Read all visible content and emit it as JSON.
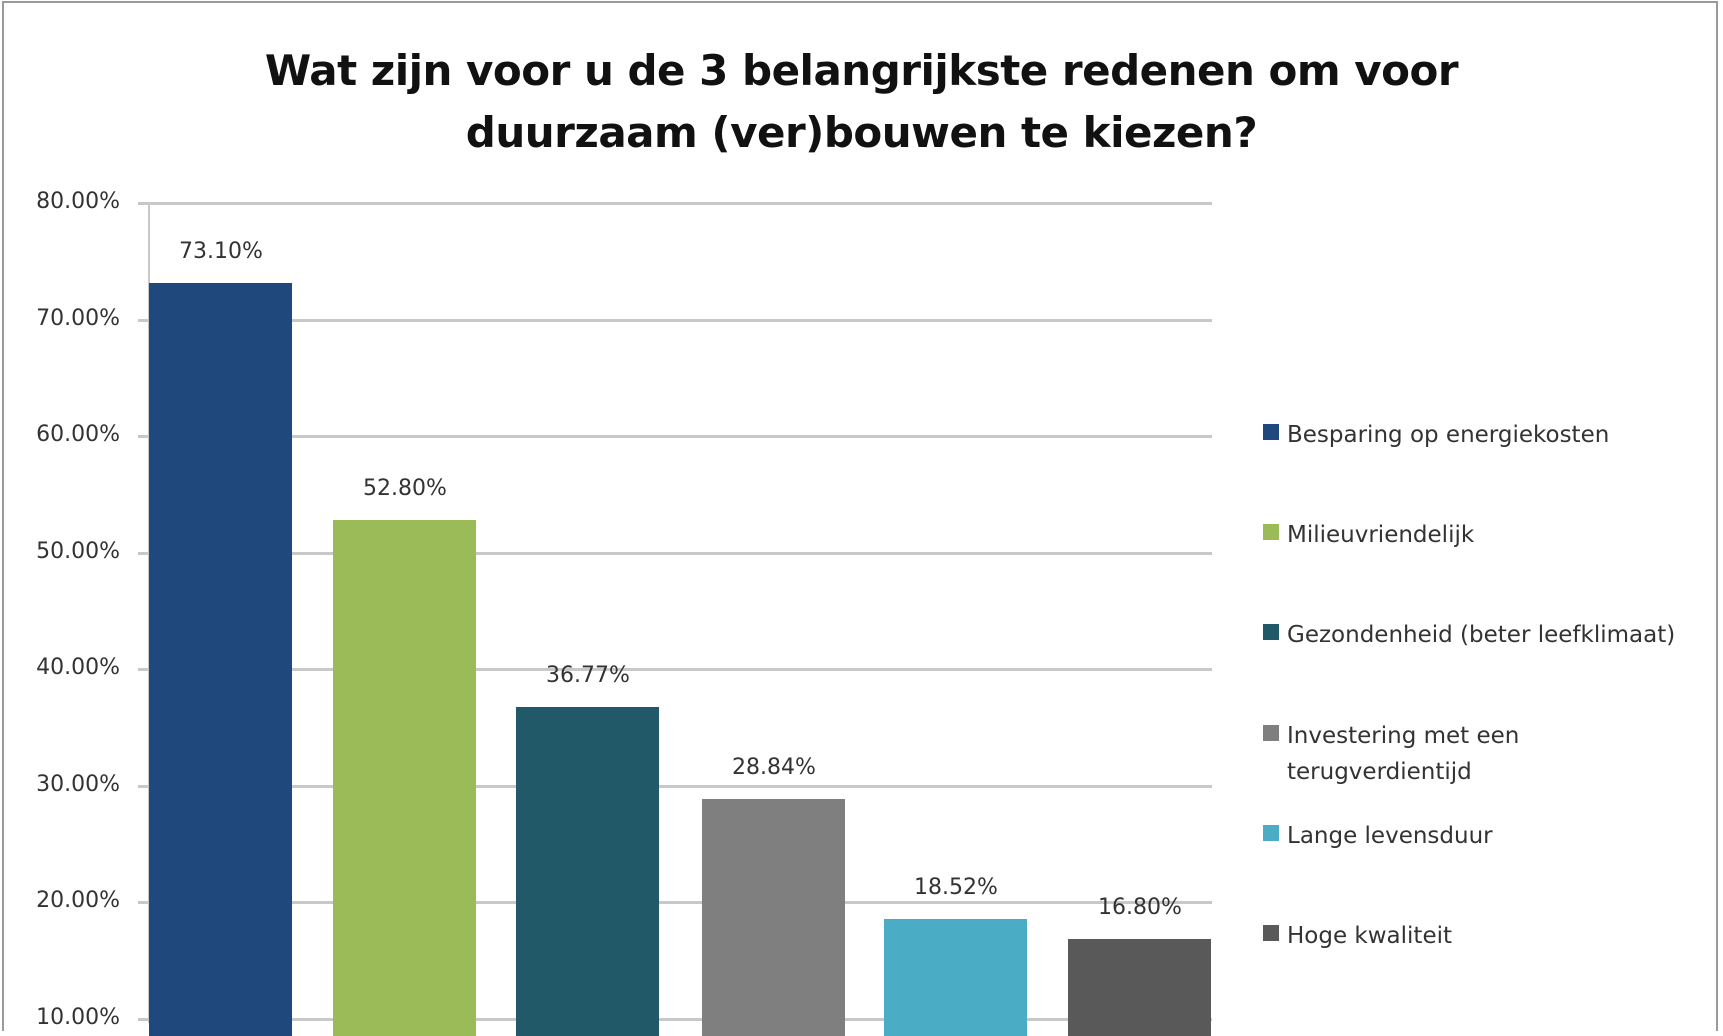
{
  "chart_data": {
    "type": "bar",
    "title": "Wat zijn voor u de 3 belangrijkste redenen om voor duurzaam (ver)bouwen te kiezen?",
    "title_lines": [
      "Wat zijn voor u de 3 belangrijkste redenen om voor",
      "duurzaam (ver)bouwen te kiezen?"
    ],
    "xlabel": "",
    "ylabel": "",
    "ylim": [
      0,
      80
    ],
    "grid": true,
    "legend_position": "right",
    "y_ticks": [
      "80.00%",
      "70.00%",
      "60.00%",
      "50.00%",
      "40.00%",
      "30.00%",
      "20.00%",
      "10.00%"
    ],
    "categories": [
      "Besparing op energiekosten",
      "Milieuvriendelijk",
      "Gezondenheid (beter leefklimaat)",
      "Investering met een terugverdientijd",
      "Lange levensduur",
      "Hoge kwaliteit"
    ],
    "values": [
      73.1,
      52.8,
      36.77,
      28.84,
      18.52,
      16.8
    ],
    "value_labels": [
      "73.10%",
      "52.80%",
      "36.77%",
      "28.84%",
      "18.52%",
      "16.80%"
    ],
    "colors": [
      "#1f497d",
      "#9bbb59",
      "#215968",
      "#7f7f7f",
      "#4bacc6",
      "#595959"
    ]
  },
  "legend": {
    "items": [
      {
        "lines": [
          "Besparing op energiekosten"
        ],
        "color": "#1f497d"
      },
      {
        "lines": [
          "Milieuvriendelijk"
        ],
        "color": "#9bbb59"
      },
      {
        "lines": [
          "Gezondenheid (beter leefklimaat)"
        ],
        "color": "#215968"
      },
      {
        "lines": [
          "Investering met een",
          "terugverdientijd"
        ],
        "color": "#7f7f7f"
      },
      {
        "lines": [
          "Lange levensduur"
        ],
        "color": "#4bacc6"
      },
      {
        "lines": [
          "Hoge kwaliteit"
        ],
        "color": "#595959"
      }
    ]
  }
}
